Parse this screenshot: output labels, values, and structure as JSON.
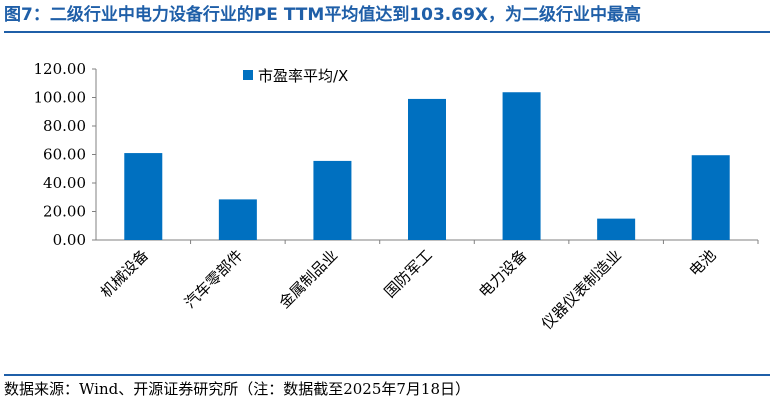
{
  "title": "图7：二级行业中电力设备行业的PE TTM平均值达到103.69X，为二级行业中最高",
  "source": "数据来源：Wind、开源证券研究所（注：数据截至2025年7月18日）",
  "colors": {
    "bar": "#0070C0",
    "accent": "#1f5fa8"
  },
  "chart_data": {
    "type": "bar",
    "categories": [
      "机械设备",
      "汽车零部件",
      "金属制品业",
      "国防军工",
      "电力设备",
      "仪器仪表制造业",
      "电池"
    ],
    "series": [
      {
        "name": "市盈率平均/X",
        "values": [
          61.0,
          28.5,
          55.5,
          99.0,
          103.69,
          15.0,
          59.5
        ]
      }
    ],
    "ylim": [
      0,
      120
    ],
    "yticks": [
      "0.00",
      "20.00",
      "40.00",
      "60.00",
      "80.00",
      "100.00",
      "120.00"
    ],
    "legend_position": "top-left",
    "grid": false
  }
}
